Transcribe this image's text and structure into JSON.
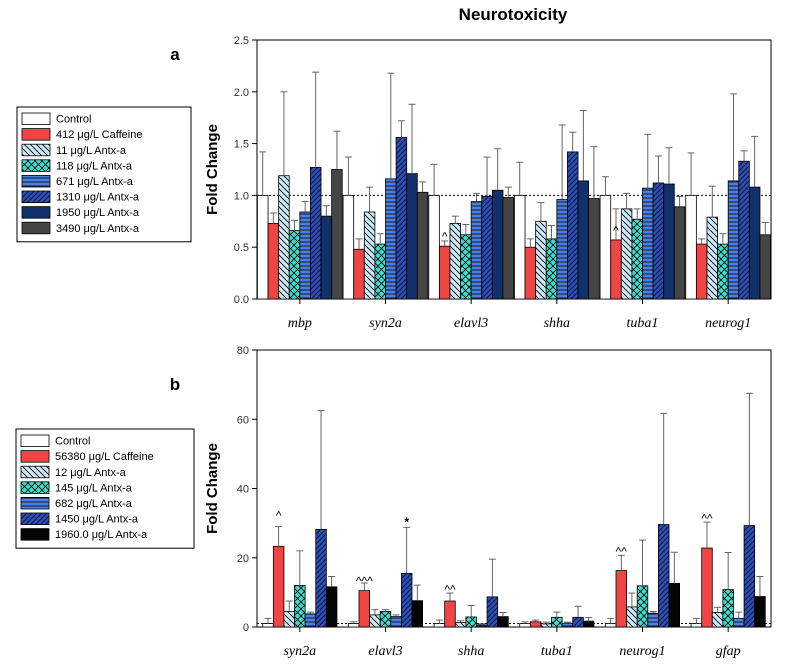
{
  "figure": {
    "title": "Neurotoxicity"
  },
  "colors": {
    "axis": "#000000",
    "errorbar": "#555555",
    "refline": "#000000",
    "star": "#ff0000"
  },
  "chart_data": [
    {
      "panel_label": "a",
      "type": "bar",
      "ylabel": "Fold Change",
      "ylim": [
        0,
        2.5
      ],
      "yticks": [
        "0.0",
        "0.5",
        "1.0",
        "1.5",
        "2.0",
        "2.5"
      ],
      "ytick_values": [
        0,
        0.5,
        1.0,
        1.5,
        2.0,
        2.5
      ],
      "reference_line": 1.0,
      "categories": [
        "mbp",
        "syn2a",
        "elavl3",
        "shha",
        "tuba1",
        "neurog1"
      ],
      "series": [
        {
          "name": "Control",
          "fill": "#ffffff",
          "pattern": "none",
          "values": [
            1.0,
            1.0,
            1.0,
            1.0,
            1.0,
            1.0
          ],
          "err": [
            0.42,
            0.37,
            0.3,
            0.32,
            0.18,
            0.41
          ]
        },
        {
          "name": "412 μg/L Caffeine",
          "fill": "#f04545",
          "pattern": "none",
          "values": [
            0.73,
            0.48,
            0.51,
            0.5,
            0.57,
            0.53
          ],
          "err": [
            0.1,
            0.1,
            0.05,
            0.08,
            0.3,
            0.05
          ]
        },
        {
          "name": "11 μg/L Antx-a",
          "fill": "#cde9f7",
          "pattern": "back",
          "values": [
            1.19,
            0.84,
            0.73,
            0.75,
            0.87,
            0.79
          ],
          "err": [
            0.81,
            0.24,
            0.07,
            0.18,
            0.15,
            0.3
          ]
        },
        {
          "name": "118 μg/L Antx-a",
          "fill": "#38e0d0",
          "pattern": "cross",
          "values": [
            0.66,
            0.53,
            0.62,
            0.58,
            0.77,
            0.53
          ],
          "err": [
            0.1,
            0.1,
            0.1,
            0.13,
            0.1,
            0.1
          ]
        },
        {
          "name": "671 μg/L Antx-a",
          "fill": "#4d7fe0",
          "pattern": "hlines",
          "values": [
            0.84,
            1.16,
            0.94,
            0.96,
            1.07,
            1.14
          ],
          "err": [
            0.1,
            1.02,
            0.08,
            0.72,
            0.52,
            0.84
          ]
        },
        {
          "name": "1310 μg/L Antx-a",
          "fill": "#2f4fb5",
          "pattern": "fwd",
          "values": [
            1.27,
            1.56,
            0.99,
            1.42,
            1.12,
            1.33
          ],
          "err": [
            0.92,
            0.16,
            0.38,
            0.19,
            0.26,
            0.1
          ]
        },
        {
          "name": "1950 μg/L Antx-a",
          "fill": "#12306a",
          "pattern": "none",
          "values": [
            0.8,
            1.21,
            1.05,
            1.14,
            1.11,
            1.08
          ],
          "err": [
            0.1,
            0.67,
            0.4,
            0.68,
            0.35,
            0.49
          ]
        },
        {
          "name": "3490 μg/L Antx-a",
          "fill": "#454545",
          "pattern": "none",
          "values": [
            1.25,
            1.03,
            0.98,
            0.97,
            0.89,
            0.62
          ],
          "err": [
            0.37,
            0.1,
            0.1,
            0.5,
            0.1,
            0.12
          ]
        }
      ],
      "annotations": [
        {
          "text": "^",
          "category": "elavl3",
          "series": "412 μg/L Caffeine",
          "y": 0.66
        },
        {
          "text": "^",
          "category": "tuba1",
          "series": "412 μg/L Caffeine",
          "y": 0.72
        }
      ],
      "legend_position": "left"
    },
    {
      "panel_label": "b",
      "type": "bar",
      "ylabel": "Fold Change",
      "ylim": [
        0,
        80
      ],
      "yticks": [
        "0",
        "20",
        "40",
        "60",
        "80"
      ],
      "ytick_values": [
        0,
        20,
        40,
        60,
        80
      ],
      "reference_line": 1.0,
      "categories": [
        "syn2a",
        "elavl3",
        "shha",
        "tuba1",
        "neurog1",
        "gfap"
      ],
      "series": [
        {
          "name": "Control",
          "fill": "#ffffff",
          "pattern": "none",
          "values": [
            1.0,
            1.0,
            1.0,
            1.0,
            1.0,
            1.0
          ],
          "err": [
            1.5,
            0.5,
            1.0,
            0.5,
            1.5,
            1.5
          ]
        },
        {
          "name": "56380 μg/L Caffeine",
          "fill": "#f04545",
          "pattern": "none",
          "values": [
            23.3,
            10.5,
            7.5,
            1.5,
            16.3,
            22.8
          ],
          "err": [
            5.7,
            2.2,
            2.3,
            0.5,
            4.4,
            7.5
          ]
        },
        {
          "name": "12 μg/L Antx-a",
          "fill": "#cde9f7",
          "pattern": "back",
          "values": [
            4.5,
            3.5,
            1.3,
            0.9,
            5.8,
            4.2
          ],
          "err": [
            3.0,
            1.5,
            0.5,
            0.5,
            4.0,
            1.5
          ]
        },
        {
          "name": "145 μg/L Antx-a",
          "fill": "#38e0d0",
          "pattern": "cross",
          "values": [
            12.0,
            4.5,
            2.9,
            2.8,
            11.9,
            10.8
          ],
          "err": [
            10.0,
            0.5,
            3.3,
            1.5,
            13.2,
            10.7
          ]
        },
        {
          "name": "682 μg/L Antx-a",
          "fill": "#4d7fe0",
          "pattern": "hlines",
          "values": [
            3.8,
            3.0,
            0.6,
            1.1,
            4.0,
            2.5
          ],
          "err": [
            0.5,
            0.5,
            0.3,
            0.3,
            0.5,
            1.8
          ]
        },
        {
          "name": "1450 μg/L Antx-a",
          "fill": "#2f4fb5",
          "pattern": "fwd",
          "values": [
            28.2,
            15.5,
            8.7,
            2.8,
            29.6,
            29.3
          ],
          "err": [
            34.3,
            13.3,
            10.9,
            3.2,
            32.1,
            38.2
          ]
        },
        {
          "name": "1960.0 μg/L Antx-a",
          "fill": "#050505",
          "pattern": "none",
          "values": [
            11.6,
            7.6,
            3.0,
            1.7,
            12.6,
            8.8
          ],
          "err": [
            3.0,
            4.5,
            1.2,
            1.0,
            9.0,
            5.8
          ]
        }
      ],
      "annotations": [
        {
          "text": "^",
          "category": "syn2a",
          "series": "56380 μg/L Caffeine",
          "y": 34.0,
          "color": "#000000"
        },
        {
          "text": "^^^",
          "category": "elavl3",
          "series": "56380 μg/L Caffeine",
          "y": 15.0,
          "color": "#000000"
        },
        {
          "text": "*",
          "category": "elavl3",
          "series": "1450 μg/L Antx-a",
          "y": 31.5,
          "color": "#ff0000"
        },
        {
          "text": "^^",
          "category": "shha",
          "series": "56380 μg/L Caffeine",
          "y": 12.5,
          "color": "#000000"
        },
        {
          "text": "^^",
          "category": "neurog1",
          "series": "56380 μg/L Caffeine",
          "y": 23.5,
          "color": "#000000"
        },
        {
          "text": "^^",
          "category": "gfap",
          "series": "56380 μg/L Caffeine",
          "y": 33.0,
          "color": "#000000"
        }
      ],
      "legend_position": "left"
    }
  ]
}
